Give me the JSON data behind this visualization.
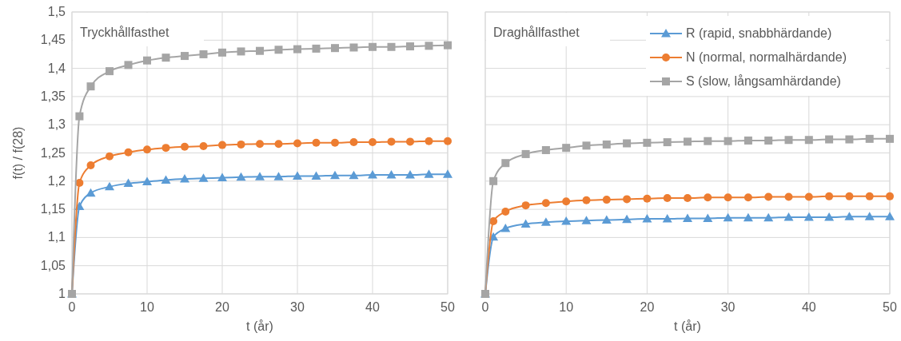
{
  "chart_data": [
    {
      "type": "line",
      "title": "Tryckhållfasthet",
      "xlabel": "t (år)",
      "ylabel": "f(t) / f(28)",
      "x": [
        0,
        1,
        2.5,
        5,
        7.5,
        10,
        12.5,
        15,
        17.5,
        20,
        22.5,
        25,
        27.5,
        30,
        32.5,
        35,
        37.5,
        40,
        42.5,
        45,
        47.5,
        50
      ],
      "series": [
        {
          "color": "#5b9bd5",
          "marker": "triangle",
          "values": [
            1,
            1.155,
            1.179,
            1.19,
            1.196,
            1.199,
            1.202,
            1.204,
            1.205,
            1.206,
            1.207,
            1.208,
            1.208,
            1.209,
            1.209,
            1.21,
            1.21,
            1.211,
            1.211,
            1.211,
            1.212,
            1.212
          ]
        },
        {
          "color": "#ed7d31",
          "marker": "circle",
          "values": [
            1,
            1.197,
            1.228,
            1.244,
            1.251,
            1.256,
            1.259,
            1.261,
            1.262,
            1.264,
            1.265,
            1.266,
            1.266,
            1.267,
            1.268,
            1.268,
            1.269,
            1.269,
            1.27,
            1.27,
            1.271,
            1.271
          ]
        },
        {
          "color": "#a5a5a5",
          "marker": "square",
          "values": [
            1,
            1.315,
            1.368,
            1.395,
            1.406,
            1.414,
            1.419,
            1.422,
            1.425,
            1.428,
            1.43,
            1.431,
            1.433,
            1.434,
            1.435,
            1.436,
            1.437,
            1.438,
            1.438,
            1.439,
            1.44,
            1.441
          ]
        }
      ],
      "xlim": [
        0,
        50
      ],
      "xticks": [
        0,
        10,
        20,
        30,
        40,
        50
      ],
      "ylim": [
        1,
        1.5
      ],
      "yticks": [
        {
          "value": 1,
          "label": "1"
        },
        {
          "value": 1.05,
          "label": "1,05"
        },
        {
          "value": 1.1,
          "label": "1,1"
        },
        {
          "value": 1.15,
          "label": "1,15"
        },
        {
          "value": 1.2,
          "label": "1,2"
        },
        {
          "value": 1.25,
          "label": "1,25"
        },
        {
          "value": 1.3,
          "label": "1,3"
        },
        {
          "value": 1.35,
          "label": "1,35"
        },
        {
          "value": 1.4,
          "label": "1,4"
        },
        {
          "value": 1.45,
          "label": "1,45"
        },
        {
          "value": 1.5,
          "label": "1,5"
        }
      ],
      "grid": true
    },
    {
      "type": "line",
      "title": "Draghållfasthet",
      "xlabel": "t (år)",
      "x": [
        0,
        1,
        2.5,
        5,
        7.5,
        10,
        12.5,
        15,
        17.5,
        20,
        22.5,
        25,
        27.5,
        30,
        32.5,
        35,
        37.5,
        40,
        42.5,
        45,
        47.5,
        50
      ],
      "series": [
        {
          "name": "R (rapid, snabbhärdande)",
          "color": "#5b9bd5",
          "marker": "triangle",
          "values": [
            1,
            1.101,
            1.116,
            1.124,
            1.127,
            1.129,
            1.13,
            1.131,
            1.132,
            1.133,
            1.133,
            1.134,
            1.134,
            1.135,
            1.135,
            1.135,
            1.136,
            1.136,
            1.136,
            1.137,
            1.137,
            1.137
          ]
        },
        {
          "name": "N (normal, normalhärdande)",
          "color": "#ed7d31",
          "marker": "circle",
          "values": [
            1,
            1.129,
            1.146,
            1.157,
            1.161,
            1.164,
            1.166,
            1.167,
            1.168,
            1.169,
            1.17,
            1.17,
            1.171,
            1.171,
            1.171,
            1.172,
            1.172,
            1.172,
            1.173,
            1.173,
            1.173,
            1.173
          ]
        },
        {
          "name": "S (slow, långsamhärdande)",
          "color": "#a5a5a5",
          "marker": "square",
          "values": [
            1,
            1.2,
            1.232,
            1.248,
            1.255,
            1.259,
            1.263,
            1.265,
            1.267,
            1.268,
            1.269,
            1.27,
            1.271,
            1.271,
            1.272,
            1.272,
            1.273,
            1.273,
            1.274,
            1.274,
            1.275,
            1.275
          ]
        }
      ],
      "xlim": [
        0,
        50
      ],
      "xticks": [
        0,
        10,
        20,
        30,
        40,
        50
      ],
      "ylim": [
        1,
        1.5
      ],
      "yticks": [
        1,
        1.05,
        1.1,
        1.15,
        1.2,
        1.25,
        1.3,
        1.35,
        1.4,
        1.45,
        1.5
      ],
      "grid": true,
      "tick_labels": "x",
      "legend": "top right"
    }
  ]
}
